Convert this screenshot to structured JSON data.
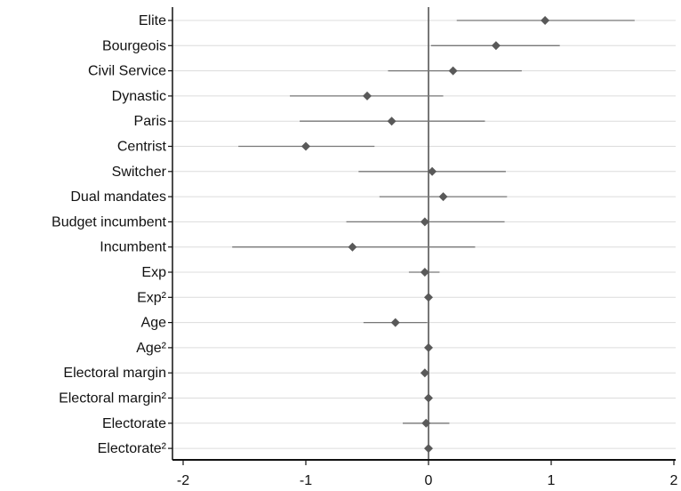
{
  "chart_data": {
    "type": "scatter",
    "title": "",
    "xlabel": "",
    "ylabel": "",
    "xlim": [
      -2,
      2
    ],
    "xticks": [
      -2,
      -1,
      0,
      1,
      2
    ],
    "xtick_labels": [
      "-2",
      "-1",
      "0",
      "1",
      "2"
    ],
    "reference_line_x": 0,
    "grid": "horizontal",
    "colors": {
      "point": "#595959",
      "ci_line": "#777777",
      "grid": "#dcdcdc",
      "axis": "#111111",
      "ref_line": "#555555"
    },
    "categories": [
      "Elite",
      "Bourgeois",
      "Civil Service",
      "Dynastic",
      "Paris",
      "Centrist",
      "Switcher",
      "Dual mandates",
      "Budget incumbent",
      "Incumbent",
      "Exp",
      "Exp²",
      "Age",
      "Age²",
      "Electoral margin",
      "Electoral margin²",
      "Electorate",
      "Electorate²"
    ],
    "series": [
      {
        "estimates": [
          0.95,
          0.55,
          0.2,
          -0.5,
          -0.3,
          -1.0,
          0.03,
          0.12,
          -0.03,
          -0.62,
          -0.03,
          0.0,
          -0.27,
          0.0,
          -0.03,
          0.0,
          -0.02,
          0.0
        ],
        "ci_low": [
          0.23,
          0.02,
          -0.33,
          -1.13,
          -1.05,
          -1.55,
          -0.57,
          -0.4,
          -0.67,
          -1.6,
          -0.16,
          -0.02,
          -0.53,
          -0.01,
          -0.05,
          -0.01,
          -0.21,
          -0.01
        ],
        "ci_high": [
          1.68,
          1.07,
          0.76,
          0.12,
          0.46,
          -0.44,
          0.63,
          0.64,
          0.62,
          0.38,
          0.09,
          0.02,
          -0.01,
          0.01,
          0.0,
          0.01,
          0.17,
          0.01
        ]
      }
    ]
  }
}
